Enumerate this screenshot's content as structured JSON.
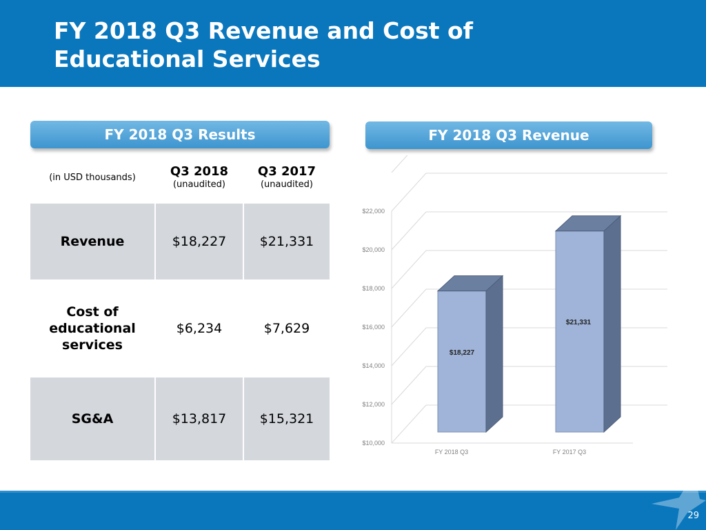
{
  "header": {
    "title_line1": "FY 2018 Q3 Revenue and Cost of",
    "title_line2": "Educational Services"
  },
  "results_panel": {
    "heading": "FY 2018 Q3 Results",
    "units_label": "(in USD thousands)",
    "columns": [
      {
        "label": "Q3 2018",
        "sub": "(unaudited)"
      },
      {
        "label": "Q3 2017",
        "sub": "(unaudited)"
      }
    ],
    "rows": [
      {
        "label": "Revenue",
        "q3_2018": "$18,227",
        "q3_2017": "$21,331"
      },
      {
        "label": "Cost of educational services",
        "q3_2018": "$6,234",
        "q3_2017": "$7,629"
      },
      {
        "label": "SG&A",
        "q3_2018": "$13,817",
        "q3_2017": "$15,321"
      }
    ]
  },
  "revenue_panel": {
    "heading": "FY 2018 Q3 Revenue"
  },
  "chart_data": {
    "type": "bar",
    "title": "FY 2018 Q3 Revenue",
    "categories": [
      "FY 2018 Q3",
      "FY 2017 Q3"
    ],
    "values": [
      18227,
      21331
    ],
    "data_labels": [
      "$18,227",
      "$21,331"
    ],
    "ylim": [
      10000,
      22000
    ],
    "yticks": [
      10000,
      12000,
      14000,
      16000,
      18000,
      20000,
      22000
    ],
    "ytick_labels": [
      "$10,000",
      "$12,000",
      "$14,000",
      "$16,000",
      "$18,000",
      "$20,000",
      "$22,000"
    ],
    "xlabel": "",
    "ylabel": "",
    "grid": true,
    "bar_color": "#9fb4d8"
  },
  "footer": {
    "page_number": "29"
  }
}
